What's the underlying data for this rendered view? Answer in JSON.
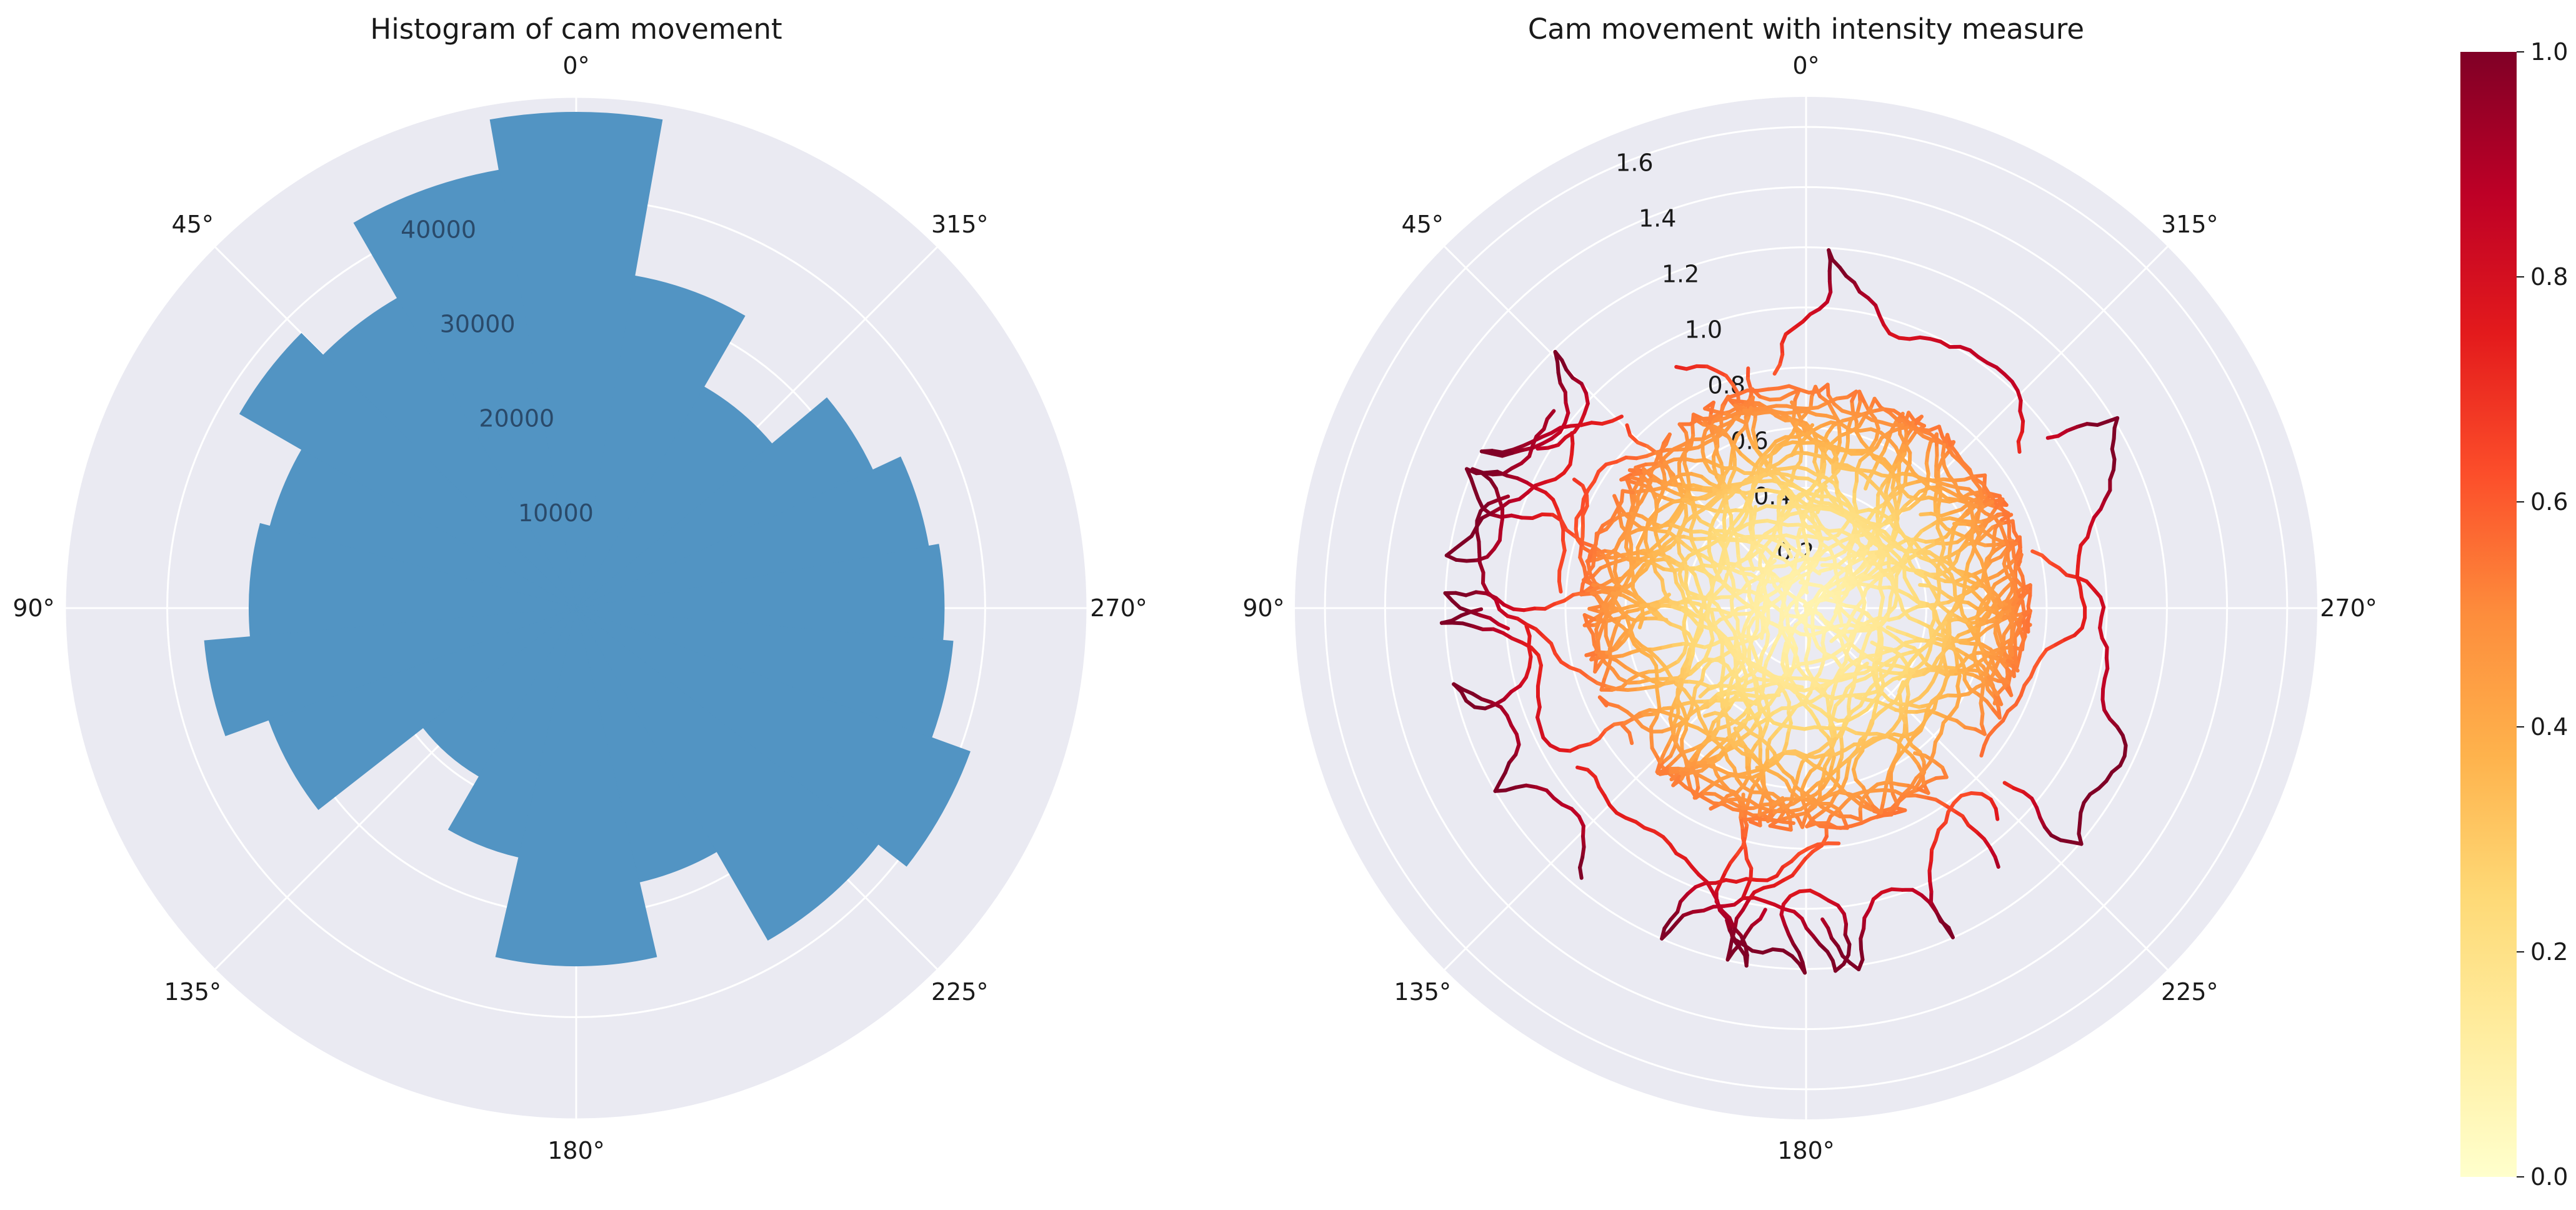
{
  "chart_data": [
    {
      "type": "bar",
      "subtype": "polar-histogram",
      "title": "Histogram of cam movement",
      "theta_zero_location": "top",
      "theta_direction": "counterclockwise",
      "theta_tick_labels": [
        "0°",
        "45°",
        "90°",
        "135°",
        "180°",
        "225°",
        "270°",
        "315°"
      ],
      "r_tick_labels": [
        "10000",
        "20000",
        "30000",
        "40000"
      ],
      "r_ticks": [
        10000,
        20000,
        30000,
        40000
      ],
      "rlim": [
        0,
        50000
      ],
      "bar_color": "#5294c3",
      "grid": true,
      "bins_deg": [
        [
          350,
          10
        ],
        [
          10,
          30
        ],
        [
          30,
          45
        ],
        [
          45,
          60
        ],
        [
          60,
          75
        ],
        [
          75,
          95
        ],
        [
          95,
          110
        ],
        [
          110,
          128
        ],
        [
          128,
          150
        ],
        [
          150,
          167
        ],
        [
          167,
          193
        ],
        [
          193,
          210
        ],
        [
          210,
          232
        ],
        [
          232,
          250
        ],
        [
          250,
          265
        ],
        [
          265,
          280
        ],
        [
          280,
          295
        ],
        [
          295,
          310
        ],
        [
          310,
          330
        ],
        [
          330,
          350
        ]
      ],
      "values": [
        48500,
        43500,
        35000,
        38000,
        31000,
        32000,
        36500,
        32000,
        19000,
        25000,
        35000,
        27500,
        37500,
        41000,
        37000,
        36000,
        35000,
        32000,
        25000,
        33000
      ]
    },
    {
      "type": "line",
      "subtype": "polar-trajectory",
      "title": "Cam movement with intensity measure",
      "theta_zero_location": "top",
      "theta_direction": "counterclockwise",
      "theta_tick_labels": [
        "0°",
        "45°",
        "90°",
        "135°",
        "180°",
        "225°",
        "270°",
        "315°"
      ],
      "r_tick_labels": [
        "0.2",
        "0.4",
        "0.6",
        "0.8",
        "1.0",
        "1.2",
        "1.4",
        "1.6"
      ],
      "r_ticks": [
        0.2,
        0.4,
        0.6,
        0.8,
        1.0,
        1.2,
        1.4,
        1.6
      ],
      "rlim": [
        0,
        1.7
      ],
      "grid": true,
      "colormap": "YlOrRd",
      "colorbar": {
        "tick_labels": [
          "0.0",
          "0.2",
          "0.4",
          "0.6",
          "0.8",
          "1.0"
        ],
        "range": [
          0,
          1
        ],
        "colors": [
          "#ffffcc",
          "#ffeda0",
          "#fed976",
          "#feb24c",
          "#fd8d3c",
          "#fc4e2a",
          "#e31a1c",
          "#bd0026",
          "#800026"
        ]
      },
      "note_on_values": "Dense trajectories; intensity grows with radius (pale near center, dark red at r≈1.0–1.2)."
    }
  ]
}
